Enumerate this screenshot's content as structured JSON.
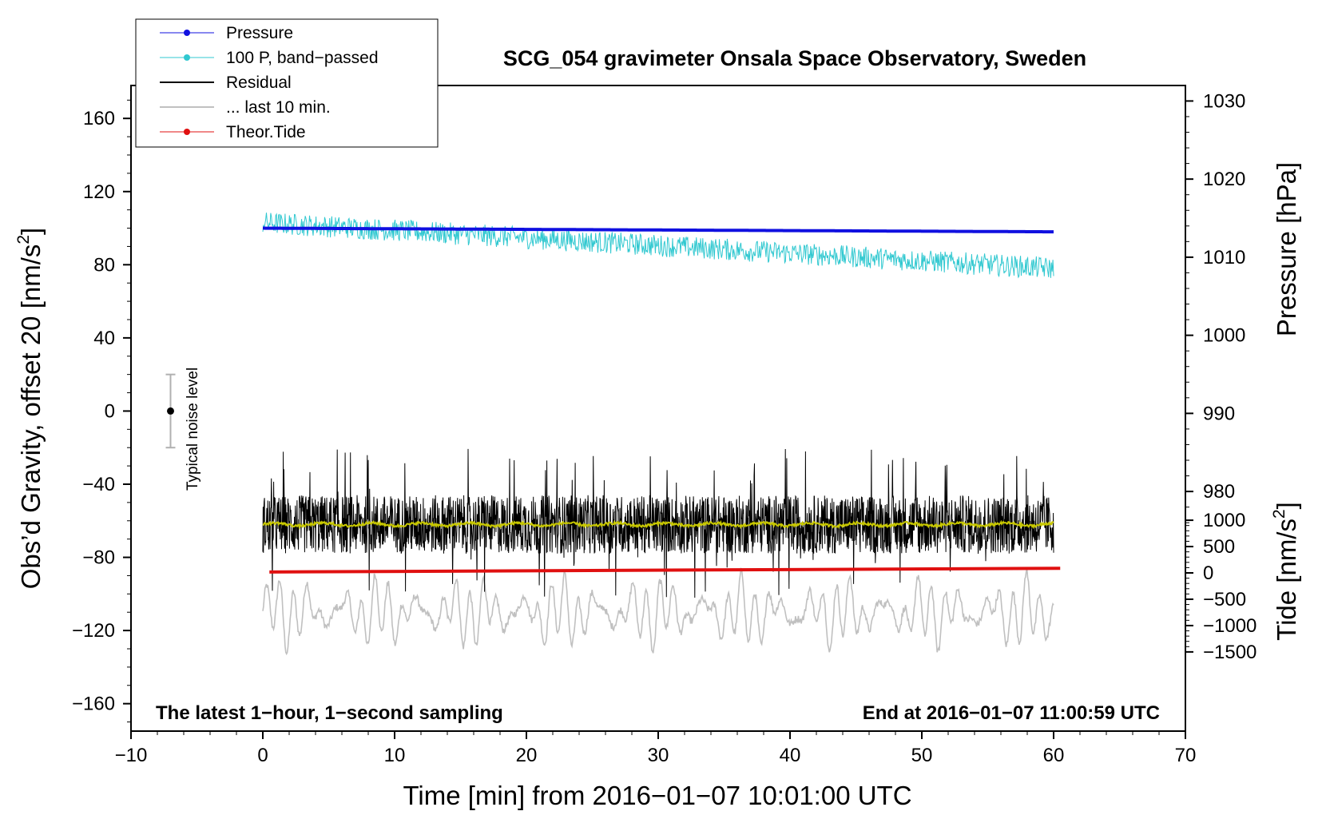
{
  "chart_data": {
    "type": "line",
    "title": "SCG_054 gravimeter Onsala Space Observatory, Sweden",
    "xlabel": "Time [min] from 2016−01−07 10:01:00 UTC",
    "ylabel_prefix": "Obs’d Gravity, offset 20 [nm/s",
    "ylabel_suffix": "]",
    "y2label": "Pressure [hPa]",
    "y3label_prefix": "Tide [nm/s",
    "y3label_suffix": "]",
    "unit_exponent": "2",
    "xlim": [
      -10,
      70
    ],
    "ylim": [
      -175,
      178
    ],
    "xticks": [
      "−10",
      "0",
      "10",
      "20",
      "30",
      "40",
      "50",
      "60",
      "70"
    ],
    "yticks": [
      "160",
      "120",
      "80",
      "40",
      "0",
      "−40",
      "−80",
      "−120",
      "−160"
    ],
    "pressure_ticks": [
      "1030",
      "1020",
      "1010",
      "1000",
      "990",
      "980"
    ],
    "tide_ticks": [
      "1000",
      "500",
      "0",
      "−500",
      "−1000",
      "−1500"
    ],
    "note_left": "The latest 1−hour, 1−second sampling",
    "note_right": "End at 2016−01−07 11:00:59 UTC",
    "noise_label": "Typical noise level",
    "noise_bar": {
      "x": -7,
      "center": 0,
      "low": -20,
      "high": 20
    },
    "legend": [
      {
        "label": "Pressure",
        "color": "#1010e0",
        "marker": true,
        "width": 1
      },
      {
        "label": "100 P, band−passed",
        "color": "#30c8d0",
        "marker": true,
        "width": 1
      },
      {
        "label": "Residual",
        "color": "#000000",
        "marker": false,
        "width": 2
      },
      {
        "label": "... last 10 min.",
        "color": "#c0c0c0",
        "marker": false,
        "width": 2
      },
      {
        "label": "Theor.Tide",
        "color": "#e01010",
        "marker": true,
        "width": 1
      }
    ],
    "series": [
      {
        "name": "Pressure",
        "color": "#1010e0",
        "y_start": 100,
        "y_end": 98
      },
      {
        "name": "100 P, band−passed",
        "color": "#30c8d0",
        "y_start": 103,
        "y_end": 78,
        "amplitude": 6
      },
      {
        "name": "Residual",
        "color": "#000000",
        "y_center": -62,
        "amplitude": 16
      },
      {
        "name": "... last 10 min.",
        "color": "#c0c0c0",
        "y_center": -110,
        "amplitude": 17
      },
      {
        "name": "Residual smoothed",
        "color": "#c8c800",
        "y_center": -62
      },
      {
        "name": "Theor.Tide",
        "color": "#e01010",
        "y_start": -88,
        "y_end": -86
      }
    ]
  }
}
